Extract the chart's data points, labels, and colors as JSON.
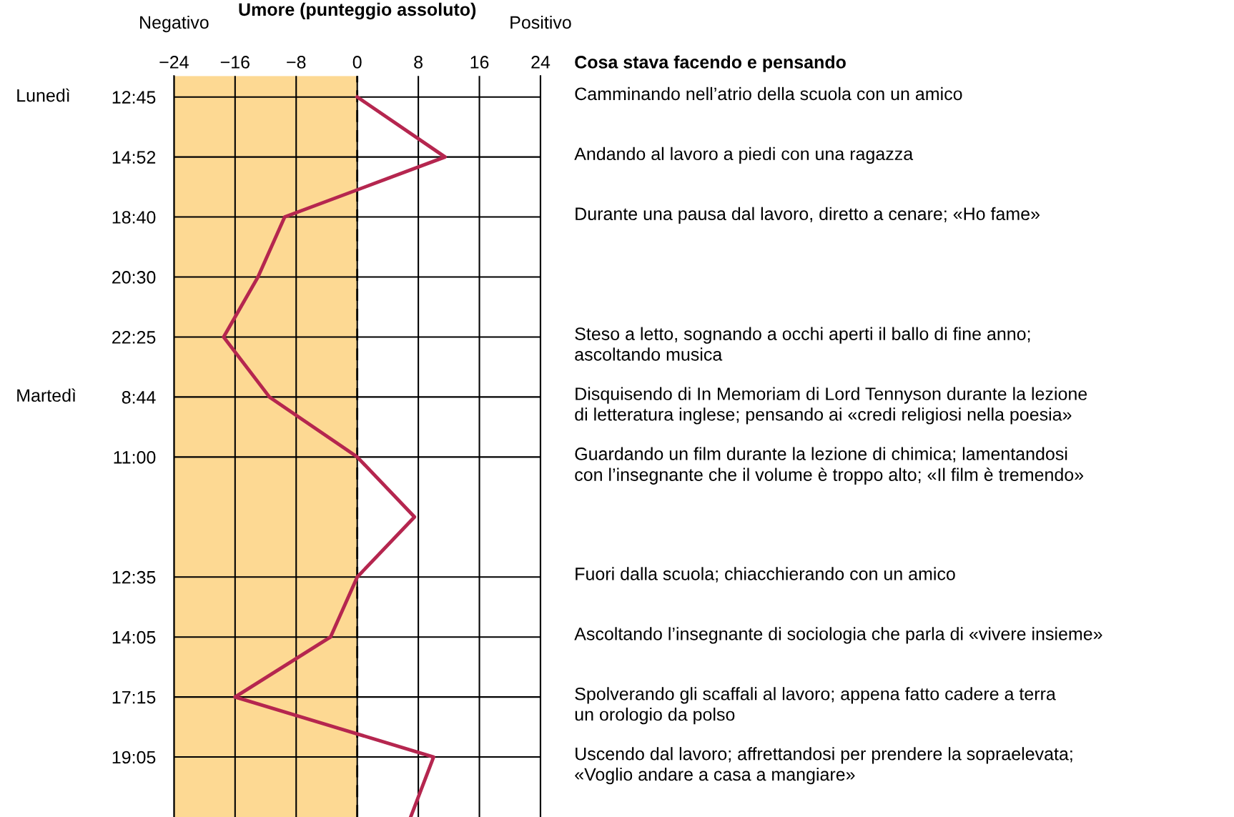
{
  "chart_data": {
    "type": "line",
    "orientation": "horizontal",
    "xlabel": "Umore (punteggio assoluto)",
    "categories": [
      "12:45",
      "14:52",
      "18:40",
      "20:30",
      "22:25",
      "8:44",
      "11:00",
      null,
      "12:35",
      "14:05",
      "17:15",
      "19:05",
      null
    ],
    "series": [
      {
        "color": "#b5264f",
        "values": [
          0,
          11.5,
          -9.5,
          -13,
          -17.5,
          -11.5,
          0,
          7.5,
          0,
          -3.5,
          -16,
          10,
          7
        ]
      }
    ],
    "xlim": [
      -24,
      24
    ],
    "xticks": [
      {
        "value": -24,
        "label": "−24"
      },
      {
        "value": -16,
        "label": "−16"
      },
      {
        "value": -8,
        "label": "−8"
      },
      0,
      8,
      16,
      24
    ],
    "grid": true,
    "marker": "none",
    "line_style": "solid",
    "bands": [
      {
        "axis": "x",
        "from": -24,
        "to": 0,
        "color": "#fdd993"
      }
    ],
    "ref_lines": [
      {
        "axis": "x",
        "value": 0,
        "color": "#000000",
        "line_style": "dashed"
      }
    ],
    "annotations": [
      "Negativo",
      "Positivo",
      "Cosa stava facendo e pensando",
      "Lunedì",
      "Martedì",
      "Camminando nell’atrio della scuola con un amico",
      "Andando al lavoro a piedi con una ragazza",
      "Durante una pausa dal lavoro, diretto a cenare; «Ho fame»",
      "Steso a letto, sognando a occhi aperti il ballo di fine anno;\nascoltando musica",
      "Disquisendo di In Memoriam di Lord Tennyson durante la lezione\ndi letteratura inglese; pensando ai «credi religiosi nella poesia»",
      "Guardando un film durante la lezione di chimica; lamentandosi\ncon l’insegnante che il volume è troppo alto; «Il film è tremendo»",
      "Fuori dalla scuola; chiacchierando con un amico",
      "Ascoltando l’insegnante di sociologia che parla di «vivere insieme»",
      "Spolverando gli scaffali al lavoro; appena fatto cadere a terra\nun orologio da polso",
      "Uscendo dal lavoro; affrettandosi per prendere la sopraelevata;\n«Voglio andare a casa a mangiare»"
    ]
  }
}
